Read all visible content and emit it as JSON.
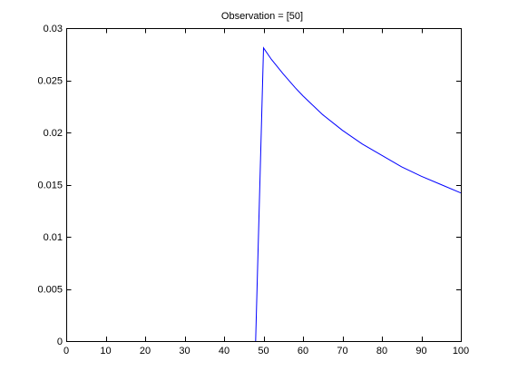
{
  "chart_data": {
    "type": "line",
    "title": "Observation = [50]",
    "xlabel": "",
    "ylabel": "",
    "xlim": [
      0,
      100
    ],
    "ylim": [
      0,
      0.03
    ],
    "xticks": [
      0,
      10,
      20,
      30,
      40,
      50,
      60,
      70,
      80,
      90,
      100
    ],
    "xtick_labels": [
      "0",
      "10",
      "20",
      "30",
      "40",
      "50",
      "60",
      "70",
      "80",
      "90",
      "100"
    ],
    "yticks": [
      0,
      0.005,
      0.01,
      0.015,
      0.02,
      0.025,
      0.03
    ],
    "ytick_labels": [
      "0",
      "0.005",
      "0.01",
      "0.015",
      "0.02",
      "0.025",
      "0.03"
    ],
    "grid": false,
    "legend": "none",
    "series": [
      {
        "color": "#0000ff",
        "x": [
          48,
          50,
          52,
          55,
          58,
          60,
          65,
          70,
          75,
          80,
          85,
          90,
          95,
          100
        ],
        "y": [
          0,
          0.0281,
          0.027,
          0.0256,
          0.0243,
          0.0235,
          0.0217,
          0.0202,
          0.0189,
          0.0178,
          0.0167,
          0.0158,
          0.015,
          0.0142
        ]
      }
    ]
  }
}
